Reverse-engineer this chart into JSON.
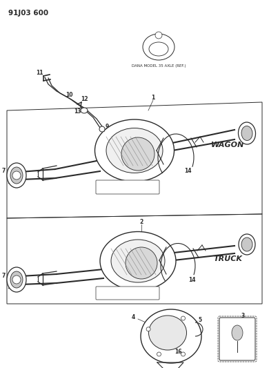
{
  "title": "91J03 600",
  "bg_color": "#ffffff",
  "line_color": "#2a2a2a",
  "text_color": "#2a2a2a",
  "dana_label": "DANA MODEL 35 AXLE (REF.)",
  "wagon_label": "WAGON",
  "truck_label": "TRUCK",
  "figsize": [
    3.9,
    5.33
  ],
  "dpi": 100
}
